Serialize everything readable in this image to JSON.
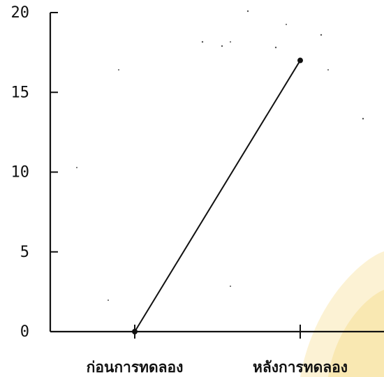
{
  "chart_data": {
    "type": "line",
    "title": "",
    "xlabel": "",
    "ylabel": "",
    "categories": [
      "ก่อนการทดลอง",
      "หลังการทดลอง"
    ],
    "series": [
      {
        "values": [
          0,
          17
        ]
      }
    ],
    "ylim": [
      0,
      20
    ],
    "yticks": [
      0,
      5,
      10,
      15,
      20
    ],
    "ytick_labels": [
      "0",
      "5",
      "10",
      "15",
      "20"
    ],
    "grid": false,
    "colors": {
      "line": "#111111",
      "axis": "#111111",
      "watermark": "#f2c63a"
    }
  }
}
